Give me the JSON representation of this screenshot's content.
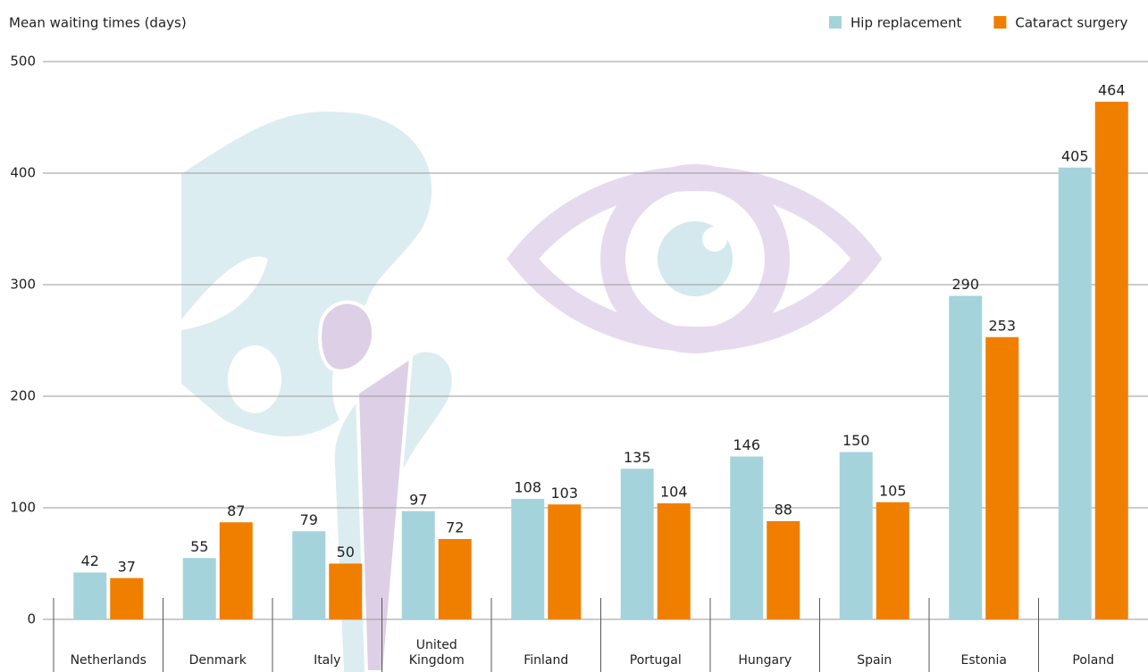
{
  "chart_data": {
    "type": "bar",
    "y_axis_label": "Mean waiting times (days)",
    "categories": [
      "Netherlands",
      "Denmark",
      "Italy",
      "United Kingdom",
      "Finland",
      "Portugal",
      "Hungary",
      "Spain",
      "Estonia",
      "Poland"
    ],
    "series": [
      {
        "name": "Hip replacement",
        "color": "#a5d3dc",
        "values": [
          42,
          55,
          79,
          97,
          108,
          135,
          146,
          150,
          290,
          405
        ]
      },
      {
        "name": "Cataract surgery",
        "color": "#f07f00",
        "values": [
          37,
          87,
          50,
          72,
          103,
          104,
          88,
          105,
          253,
          464
        ]
      }
    ],
    "ylim": [
      0,
      500
    ],
    "yticks": [
      0,
      100,
      200,
      300,
      400,
      500
    ],
    "grid": true,
    "legend": "top-right"
  }
}
